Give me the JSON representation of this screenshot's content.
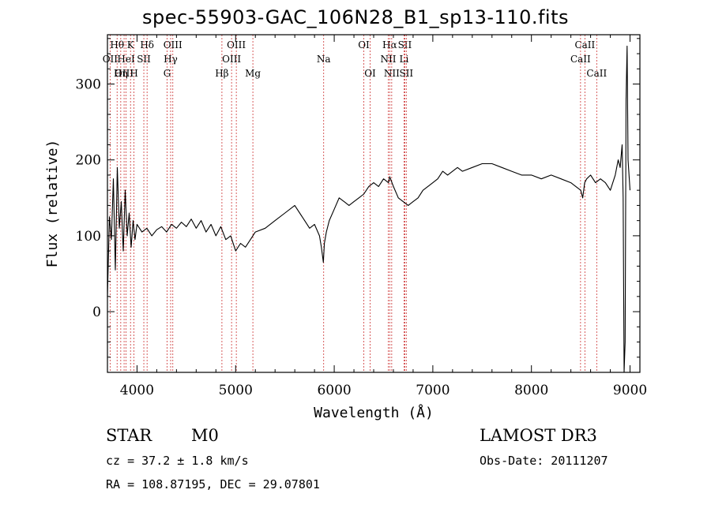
{
  "title": "spec-55903-GAC_106N28_B1_sp13-110.fits",
  "info": {
    "object_class": "STAR",
    "subclass": "M0",
    "survey": "LAMOST DR3",
    "cz": "cz = 37.2 ± 1.8 km/s",
    "obs_date": "Obs-Date: 20111207",
    "coords": "RA = 108.87195, DEC =  29.07801"
  },
  "chart_data": {
    "type": "line",
    "xlabel": "Wavelength (Å)",
    "ylabel": "Flux (relative)",
    "xlim": [
      3700,
      9100
    ],
    "ylim": [
      -80,
      365
    ],
    "xticks": [
      4000,
      5000,
      6000,
      7000,
      8000,
      9000
    ],
    "yticks": [
      0,
      100,
      200,
      300
    ],
    "grid": false,
    "line_color": "#000000",
    "marker_color": "#cc3333",
    "series": [
      {
        "x": [
          3700,
          3720,
          3740,
          3760,
          3780,
          3800,
          3820,
          3840,
          3860,
          3880,
          3900,
          3920,
          3940,
          3960,
          3980,
          4000,
          4050,
          4100,
          4150,
          4200,
          4250,
          4300,
          4350,
          4400,
          4450,
          4500,
          4550,
          4600,
          4650,
          4700,
          4750,
          4800,
          4850,
          4900,
          4950,
          5000,
          5050,
          5100,
          5150,
          5200,
          5300,
          5400,
          5500,
          5600,
          5700,
          5750,
          5800,
          5850,
          5870,
          5890,
          5900,
          5920,
          5950,
          6000,
          6050,
          6100,
          6150,
          6200,
          6250,
          6300,
          6350,
          6400,
          6450,
          6500,
          6550,
          6563,
          6600,
          6650,
          6700,
          6750,
          6800,
          6850,
          6900,
          6950,
          7000,
          7050,
          7100,
          7150,
          7200,
          7250,
          7300,
          7400,
          7500,
          7600,
          7700,
          7800,
          7900,
          8000,
          8100,
          8200,
          8300,
          8400,
          8450,
          8500,
          8520,
          8540,
          8560,
          8600,
          8650,
          8700,
          8750,
          8800,
          8850,
          8880,
          8900,
          8920,
          8930,
          8940,
          8950,
          8960,
          8970,
          8980,
          9000
        ],
        "y": [
          20,
          125,
          95,
          175,
          55,
          190,
          110,
          145,
          80,
          160,
          100,
          130,
          85,
          120,
          95,
          115,
          105,
          110,
          100,
          108,
          112,
          105,
          115,
          110,
          118,
          112,
          122,
          110,
          120,
          105,
          115,
          100,
          112,
          95,
          100,
          80,
          90,
          85,
          95,
          105,
          110,
          120,
          130,
          140,
          120,
          110,
          115,
          100,
          85,
          65,
          90,
          105,
          120,
          135,
          150,
          145,
          140,
          145,
          150,
          155,
          165,
          170,
          165,
          175,
          170,
          178,
          165,
          150,
          145,
          140,
          145,
          150,
          160,
          165,
          170,
          175,
          185,
          180,
          185,
          190,
          185,
          190,
          195,
          195,
          190,
          185,
          180,
          180,
          175,
          180,
          175,
          170,
          165,
          160,
          150,
          170,
          175,
          180,
          170,
          175,
          170,
          160,
          180,
          200,
          190,
          220,
          150,
          -80,
          -40,
          280,
          350,
          200,
          160
        ]
      }
    ],
    "line_markers": [
      {
        "label": "Hθ",
        "x": 3798,
        "row": 1
      },
      {
        "label": "OII",
        "x": 3727,
        "row": 2
      },
      {
        "label": "OIII",
        "x": 3869,
        "row": 3
      },
      {
        "label": "K",
        "x": 3934,
        "row": 1
      },
      {
        "label": "HeI",
        "x": 3889,
        "row": 2
      },
      {
        "label": "Hη",
        "x": 3835,
        "row": 3
      },
      {
        "label": "Hδ",
        "x": 4102,
        "row": 1
      },
      {
        "label": "SII",
        "x": 4069,
        "row": 2
      },
      {
        "label": "H",
        "x": 3969,
        "row": 3
      },
      {
        "label": "OIII",
        "x": 4363,
        "row": 1
      },
      {
        "label": "Hγ",
        "x": 4341,
        "row": 2
      },
      {
        "label": "G",
        "x": 4305,
        "row": 3
      },
      {
        "label": "OIII",
        "x": 5007,
        "row": 1
      },
      {
        "label": "OIII",
        "x": 4959,
        "row": 2
      },
      {
        "label": "Hβ",
        "x": 4861,
        "row": 3
      },
      {
        "label": "Mg",
        "x": 5175,
        "row": 3
      },
      {
        "label": "Na",
        "x": 5893,
        "row": 2
      },
      {
        "label": "OI",
        "x": 6300,
        "row": 1
      },
      {
        "label": "OI",
        "x": 6364,
        "row": 3
      },
      {
        "label": "Hα",
        "x": 6563,
        "row": 1
      },
      {
        "label": "NII",
        "x": 6548,
        "row": 2
      },
      {
        "label": "NII",
        "x": 6583,
        "row": 3
      },
      {
        "label": "SII",
        "x": 6716,
        "row": 1
      },
      {
        "label": "Li",
        "x": 6708,
        "row": 2
      },
      {
        "label": "SII",
        "x": 6731,
        "row": 3
      },
      {
        "label": "CaII",
        "x": 8542,
        "row": 1
      },
      {
        "label": "CaII",
        "x": 8498,
        "row": 2
      },
      {
        "label": "CaII",
        "x": 8662,
        "row": 3
      }
    ]
  }
}
